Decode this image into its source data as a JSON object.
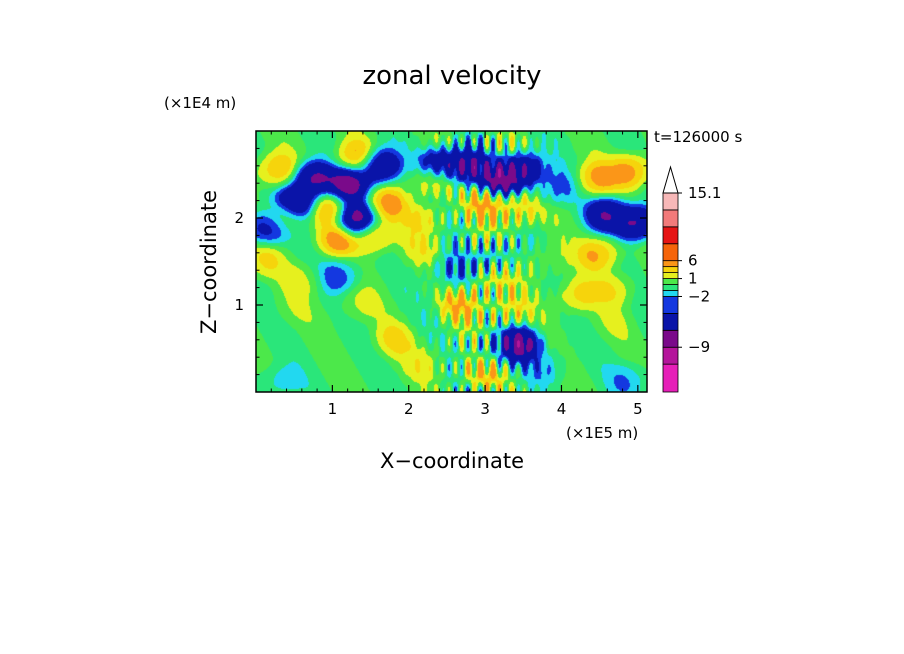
{
  "chart_data": {
    "type": "heatmap",
    "title": "zonal velocity",
    "xlabel": "X−coordinate",
    "ylabel": "Z−coordinate",
    "x_multiplier": "(×1E5 m)",
    "y_multiplier": "(×1E4 m)",
    "time_label": "t=126000 s",
    "xlim": [
      0,
      5.12
    ],
    "ylim": [
      0,
      3.0
    ],
    "x_ticks": [
      1,
      2,
      3,
      4,
      5
    ],
    "y_ticks": [
      1,
      2
    ],
    "colorbar": {
      "levels": [
        -15,
        -12,
        -9,
        -6,
        -3,
        -2,
        -1,
        0,
        1,
        2,
        3,
        6,
        9,
        12,
        15.1
      ],
      "labeled_ticks": [
        15.1,
        6,
        1,
        -2,
        -9
      ],
      "colors": [
        "#e61fb8",
        "#b4159b",
        "#7a0a8a",
        "#0a14a8",
        "#1438e0",
        "#22d8f0",
        "#2ae67a",
        "#4ce84a",
        "#e6f01e",
        "#f6d40c",
        "#fb9618",
        "#f5640a",
        "#e61414",
        "#f27a7a",
        "#f7b8b8"
      ],
      "extend": "max"
    },
    "field_features": [
      {
        "x": 0.25,
        "z": 2.55,
        "value": 5
      },
      {
        "x": 0.55,
        "z": 2.2,
        "value": -10
      },
      {
        "x": 0.15,
        "z": 1.9,
        "value": -8
      },
      {
        "x": 0.35,
        "z": 2.0,
        "value": 3
      },
      {
        "x": 0.75,
        "z": 2.45,
        "value": -11
      },
      {
        "x": 0.95,
        "z": 2.1,
        "value": 4
      },
      {
        "x": 1.2,
        "z": 2.4,
        "value": -11
      },
      {
        "x": 1.3,
        "z": 2.7,
        "value": 5
      },
      {
        "x": 1.3,
        "z": 2.0,
        "value": -11
      },
      {
        "x": 1.6,
        "z": 2.6,
        "value": -10
      },
      {
        "x": 1.7,
        "z": 2.15,
        "value": 5
      },
      {
        "x": 1.05,
        "z": 1.75,
        "value": 5
      },
      {
        "x": 1.55,
        "z": 1.8,
        "value": 5
      },
      {
        "x": 1.1,
        "z": 1.35,
        "value": -4
      },
      {
        "x": 0.6,
        "z": 1.3,
        "value": 2
      },
      {
        "x": 2.3,
        "z": 2.45,
        "value": 5
      },
      {
        "x": 2.2,
        "z": 2.0,
        "value": 3
      },
      {
        "x": 2.4,
        "z": 2.6,
        "value": -10
      },
      {
        "x": 2.75,
        "z": 2.6,
        "value": -10
      },
      {
        "x": 3.2,
        "z": 2.45,
        "value": -11
      },
      {
        "x": 3.5,
        "z": 2.55,
        "value": -10
      },
      {
        "x": 3.05,
        "z": 2.15,
        "value": 5
      },
      {
        "x": 3.45,
        "z": 2.1,
        "value": 4
      },
      {
        "x": 3.9,
        "z": 2.35,
        "value": -4
      },
      {
        "x": 4.45,
        "z": 2.45,
        "value": 5
      },
      {
        "x": 4.9,
        "z": 2.55,
        "value": 6
      },
      {
        "x": 4.6,
        "z": 2.05,
        "value": -9
      },
      {
        "x": 4.95,
        "z": 1.95,
        "value": -11
      },
      {
        "x": 4.5,
        "z": 1.6,
        "value": 5
      },
      {
        "x": 4.7,
        "z": 1.2,
        "value": 3
      },
      {
        "x": 4.6,
        "z": 0.8,
        "value": 1
      },
      {
        "x": 3.45,
        "z": 0.55,
        "value": -11
      },
      {
        "x": 3.3,
        "z": 0.95,
        "value": 3
      },
      {
        "x": 3.8,
        "z": 0.3,
        "value": -3
      },
      {
        "x": 2.95,
        "z": 0.25,
        "value": 4
      },
      {
        "x": 3.05,
        "z": 0.45,
        "value": -3
      },
      {
        "x": 2.7,
        "z": 1.0,
        "value": 4
      },
      {
        "x": 2.55,
        "z": 1.4,
        "value": -4
      },
      {
        "x": 3.15,
        "z": 1.55,
        "value": -3
      },
      {
        "x": 3.1,
        "z": 1.25,
        "value": 3
      },
      {
        "x": 3.8,
        "z": 1.5,
        "value": 2
      },
      {
        "x": 0.4,
        "z": 0.95,
        "value": 1
      },
      {
        "x": 0.25,
        "z": 0.1,
        "value": -3
      },
      {
        "x": 2.2,
        "z": 0.35,
        "value": 2
      },
      {
        "x": 1.8,
        "z": 0.6,
        "value": 3
      },
      {
        "x": 1.3,
        "z": 1.0,
        "value": 2
      },
      {
        "x": 4.9,
        "z": 0.15,
        "value": -3
      },
      {
        "x": 2.1,
        "z": 1.65,
        "value": 2
      },
      {
        "x": 4.2,
        "z": 1.1,
        "value": 4
      },
      {
        "x": 0.05,
        "z": 1.5,
        "value": 3
      }
    ]
  }
}
